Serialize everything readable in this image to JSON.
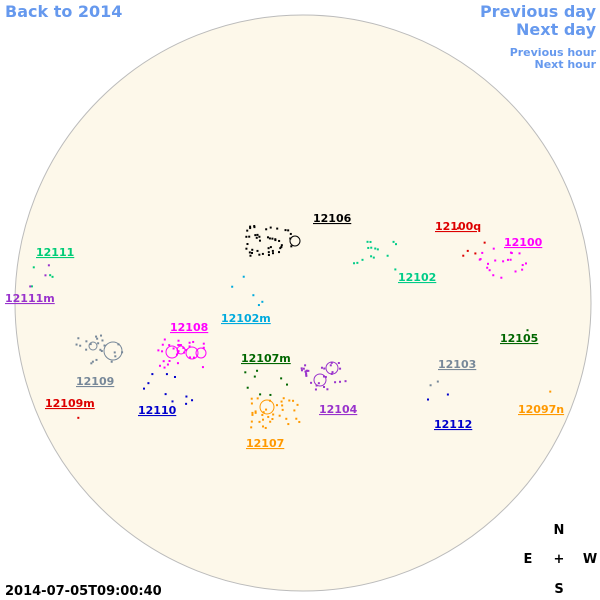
{
  "navigation": {
    "back": "Back to 2014",
    "previous_day": "Previous day",
    "next_day": "Next day",
    "previous_hour": "Previous hour",
    "next_hour": "Next hour"
  },
  "regions": [
    {
      "label": "12111",
      "color": "#00cc77"
    },
    {
      "label": "12111m",
      "color": "#9933cc"
    },
    {
      "label": "12108",
      "color": "#ff00ff"
    },
    {
      "label": "12102m",
      "color": "#00aadd"
    },
    {
      "label": "12106",
      "color": "#000000"
    },
    {
      "label": "12100q",
      "color": "#dd0000"
    },
    {
      "label": "12100",
      "color": "#ff00ff"
    },
    {
      "label": "12102",
      "color": "#00cc88"
    },
    {
      "label": "12107m",
      "color": "#006600"
    },
    {
      "label": "12105",
      "color": "#006600"
    },
    {
      "label": "12103",
      "color": "#778899"
    },
    {
      "label": "12109",
      "color": "#778899"
    },
    {
      "label": "12109m",
      "color": "#dd0000"
    },
    {
      "label": "12110",
      "color": "#0000cc"
    },
    {
      "label": "12104",
      "color": "#9933cc"
    },
    {
      "label": "12112",
      "color": "#0000cc"
    },
    {
      "label": "12097n",
      "color": "#ff9900"
    },
    {
      "label": "12107",
      "color": "#ff9900"
    }
  ],
  "timestamp": "2014-07-05T09:00:40",
  "compass": {
    "north": "N",
    "east": "E",
    "center": "+",
    "west": "W",
    "south": "S"
  }
}
